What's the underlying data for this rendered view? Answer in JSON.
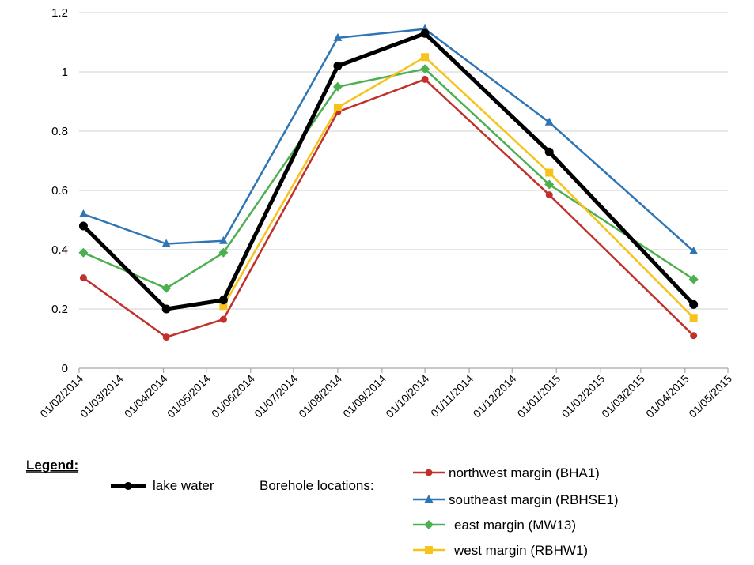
{
  "chart_data": {
    "type": "line",
    "x_ticks": [
      "01/02/2014",
      "01/03/2014",
      "01/04/2014",
      "01/05/2014",
      "01/06/2014",
      "01/07/2014",
      "01/08/2014",
      "01/09/2014",
      "01/10/2014",
      "01/11/2014",
      "01/12/2014",
      "01/01/2015",
      "01/02/2015",
      "01/03/2015",
      "01/04/2015",
      "01/05/2015"
    ],
    "y_ticks": [
      "0",
      "0.2",
      "0.4",
      "0.6",
      "0.8",
      "1",
      "1.2"
    ],
    "ylim": [
      0,
      1.2
    ],
    "xlim": [
      "2014-02-01",
      "2015-05-01"
    ],
    "grid": "horizontal",
    "legend": {
      "title": "Legend:",
      "group_label": "Borehole locations:"
    },
    "series": [
      {
        "name": "lake water",
        "color": "#000000",
        "marker": "circle",
        "points": [
          [
            "2014-02-04",
            0.48
          ],
          [
            "2014-04-03",
            0.2
          ],
          [
            "2014-05-13",
            0.23
          ],
          [
            "2014-08-01",
            1.02
          ],
          [
            "2014-10-01",
            1.13
          ],
          [
            "2014-12-27",
            0.73
          ],
          [
            "2015-04-07",
            0.215
          ]
        ]
      },
      {
        "name": "northwest margin (BHA1)",
        "color": "#c0312b",
        "marker": "circle",
        "points": [
          [
            "2014-02-04",
            0.305
          ],
          [
            "2014-04-03",
            0.105
          ],
          [
            "2014-05-13",
            0.165
          ],
          [
            "2014-08-01",
            0.865
          ],
          [
            "2014-10-01",
            0.975
          ],
          [
            "2014-12-27",
            0.585
          ],
          [
            "2015-04-07",
            0.11
          ]
        ]
      },
      {
        "name": "southeast margin (RBHSE1)",
        "color": "#2e75b6",
        "marker": "triangle",
        "points": [
          [
            "2014-02-04",
            0.52
          ],
          [
            "2014-04-03",
            0.42
          ],
          [
            "2014-05-13",
            0.43
          ],
          [
            "2014-08-01",
            1.115
          ],
          [
            "2014-10-01",
            1.145
          ],
          [
            "2014-12-27",
            0.83
          ],
          [
            "2015-04-07",
            0.395
          ]
        ]
      },
      {
        "name": "east margin (MW13)",
        "color": "#4caf50",
        "marker": "diamond",
        "points": [
          [
            "2014-02-04",
            0.39
          ],
          [
            "2014-04-03",
            0.27
          ],
          [
            "2014-05-13",
            0.39
          ],
          [
            "2014-08-01",
            0.95
          ],
          [
            "2014-10-01",
            1.01
          ],
          [
            "2014-12-27",
            0.62
          ],
          [
            "2015-04-07",
            0.3
          ]
        ]
      },
      {
        "name": "west margin (RBHW1)",
        "color": "#f7c21a",
        "marker": "square",
        "points": [
          [
            "2014-05-13",
            0.21
          ],
          [
            "2014-08-01",
            0.88
          ],
          [
            "2014-10-01",
            1.05
          ],
          [
            "2014-12-27",
            0.66
          ],
          [
            "2015-04-07",
            0.17
          ]
        ]
      }
    ]
  }
}
